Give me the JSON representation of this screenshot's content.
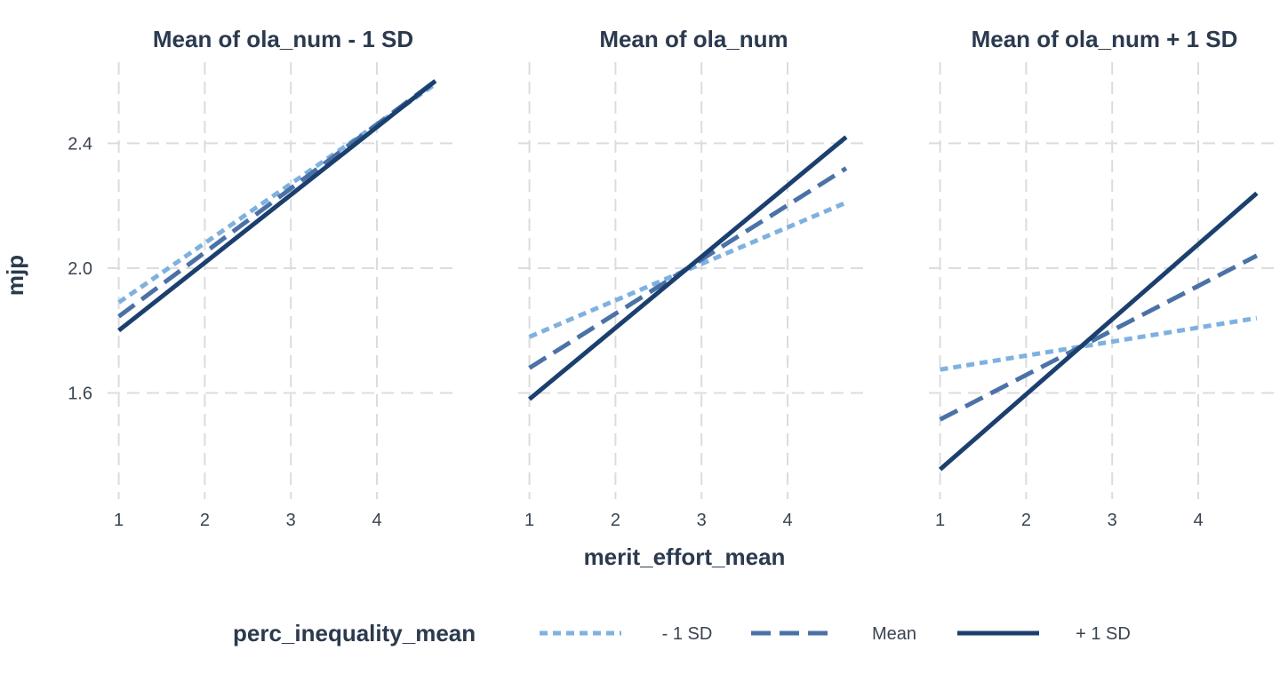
{
  "chart_data": {
    "type": "line",
    "xlabel": "merit_effort_mean",
    "ylabel": "mjp",
    "x_ticks": [
      1,
      2,
      3,
      4
    ],
    "y_ticks": [
      "1.6",
      "2.0",
      "2.4"
    ],
    "xlim": [
      0.87,
      4.95
    ],
    "ylim": [
      1.26,
      2.66
    ],
    "grid": true,
    "legend": {
      "title": "perc_inequality_mean",
      "position": "bottom",
      "entries": [
        "- 1 SD",
        "Mean",
        "+ 1 SD"
      ]
    },
    "colors": {
      "- 1 SD": "#7fb1e0",
      "Mean": "#4a72a6",
      "+ 1 SD": "#1b3f6e"
    },
    "panels": [
      {
        "title": "Mean of ola_num - 1 SD",
        "series": [
          {
            "name": "- 1 SD",
            "x": [
              1,
              4.68
            ],
            "y": [
              1.89,
              2.59
            ]
          },
          {
            "name": "Mean",
            "x": [
              1,
              4.68
            ],
            "y": [
              1.845,
              2.6
            ]
          },
          {
            "name": "+ 1 SD",
            "x": [
              1,
              4.68
            ],
            "y": [
              1.8,
              2.6
            ]
          }
        ]
      },
      {
        "title": "Mean of ola_num",
        "series": [
          {
            "name": "- 1 SD",
            "x": [
              1,
              4.68
            ],
            "y": [
              1.78,
              2.21
            ]
          },
          {
            "name": "Mean",
            "x": [
              1,
              4.68
            ],
            "y": [
              1.68,
              2.32
            ]
          },
          {
            "name": "+ 1 SD",
            "x": [
              1,
              4.68
            ],
            "y": [
              1.58,
              2.42
            ]
          }
        ]
      },
      {
        "title": "Mean of ola_num + 1 SD",
        "series": [
          {
            "name": "- 1 SD",
            "x": [
              1,
              4.68
            ],
            "y": [
              1.675,
              1.84
            ]
          },
          {
            "name": "Mean",
            "x": [
              1,
              4.68
            ],
            "y": [
              1.515,
              2.04
            ]
          },
          {
            "name": "+ 1 SD",
            "x": [
              1,
              4.68
            ],
            "y": [
              1.355,
              2.24
            ]
          }
        ]
      }
    ]
  }
}
